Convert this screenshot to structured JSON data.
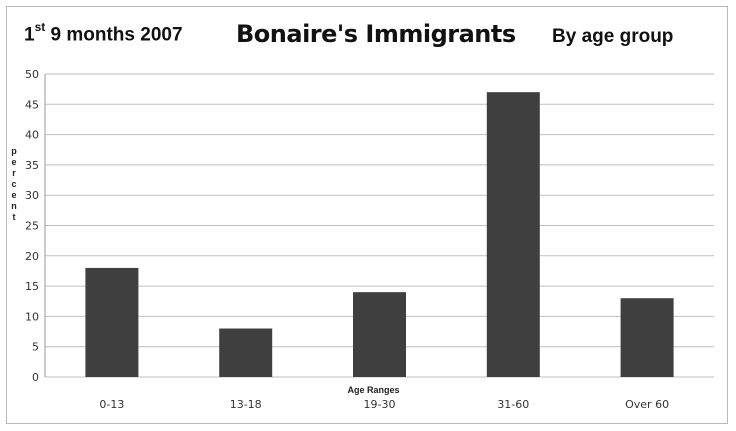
{
  "chart_data": {
    "type": "bar",
    "title": "Bonaire's Immigrants",
    "subtitle_left": {
      "base": "1",
      "sup": "st",
      "rest": " 9 months 2007"
    },
    "subtitle_right": "By age group",
    "xlabel": "Age Ranges",
    "ylabel": "Percent",
    "ylim": [
      0,
      50
    ],
    "yticks": [
      0,
      5,
      10,
      15,
      20,
      25,
      30,
      35,
      40,
      45,
      50
    ],
    "grid": true,
    "legend": "none",
    "categories": [
      "0-13",
      "13-18",
      "19-30",
      "31-60",
      "Over 60"
    ],
    "values": [
      18,
      8,
      14,
      47,
      13
    ],
    "bar_color": "#3f3f3f",
    "grid_color": "#bfbfbf"
  }
}
